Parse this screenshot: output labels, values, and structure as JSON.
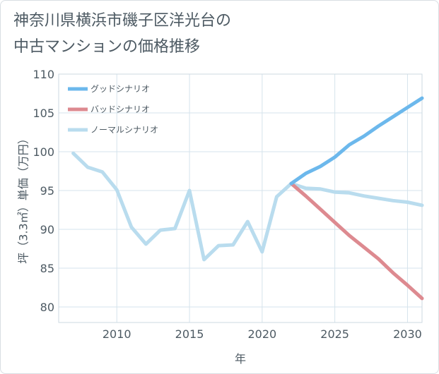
{
  "chart_data": {
    "type": "line",
    "title_lines": [
      "神奈川県横浜市磯子区洋光台の",
      "中古マンションの価格推移"
    ],
    "xlabel": "年",
    "ylabel": "坪（3.3㎡）単価（万円）",
    "xlim": [
      2006,
      2031
    ],
    "ylim": [
      78,
      110
    ],
    "xticks": [
      2010,
      2015,
      2020,
      2025,
      2030
    ],
    "yticks": [
      80,
      85,
      90,
      95,
      100,
      105,
      110
    ],
    "grid": true,
    "legend_position": "top-left",
    "series": [
      {
        "name": "グッドシナリオ",
        "color": "#6cb8ec",
        "x": [
          2022,
          2023,
          2024,
          2025,
          2026,
          2027,
          2028,
          2029,
          2030,
          2031
        ],
        "y": [
          95.9,
          97.2,
          98.1,
          99.3,
          100.9,
          102.0,
          103.3,
          104.5,
          105.7,
          106.9
        ]
      },
      {
        "name": "バッドシナリオ",
        "color": "#dd8a90",
        "x": [
          2022,
          2023,
          2024,
          2025,
          2026,
          2027,
          2028,
          2029,
          2030,
          2031
        ],
        "y": [
          95.9,
          94.3,
          92.6,
          90.9,
          89.2,
          87.7,
          86.2,
          84.4,
          82.8,
          81.1
        ]
      },
      {
        "name": "ノーマルシナリオ",
        "color": "#b9dcee",
        "x": [
          2007,
          2008,
          2009,
          2010,
          2011,
          2012,
          2013,
          2014,
          2015,
          2016,
          2017,
          2018,
          2019,
          2020,
          2021,
          2022,
          2023,
          2024,
          2025,
          2026,
          2027,
          2028,
          2029,
          2030,
          2031
        ],
        "y": [
          99.8,
          98.0,
          97.4,
          95.1,
          90.3,
          88.1,
          89.9,
          90.1,
          95.0,
          86.1,
          87.9,
          88.0,
          91.0,
          87.1,
          94.2,
          95.9,
          95.3,
          95.2,
          94.8,
          94.7,
          94.3,
          94.0,
          93.7,
          93.5,
          93.1
        ]
      }
    ]
  }
}
